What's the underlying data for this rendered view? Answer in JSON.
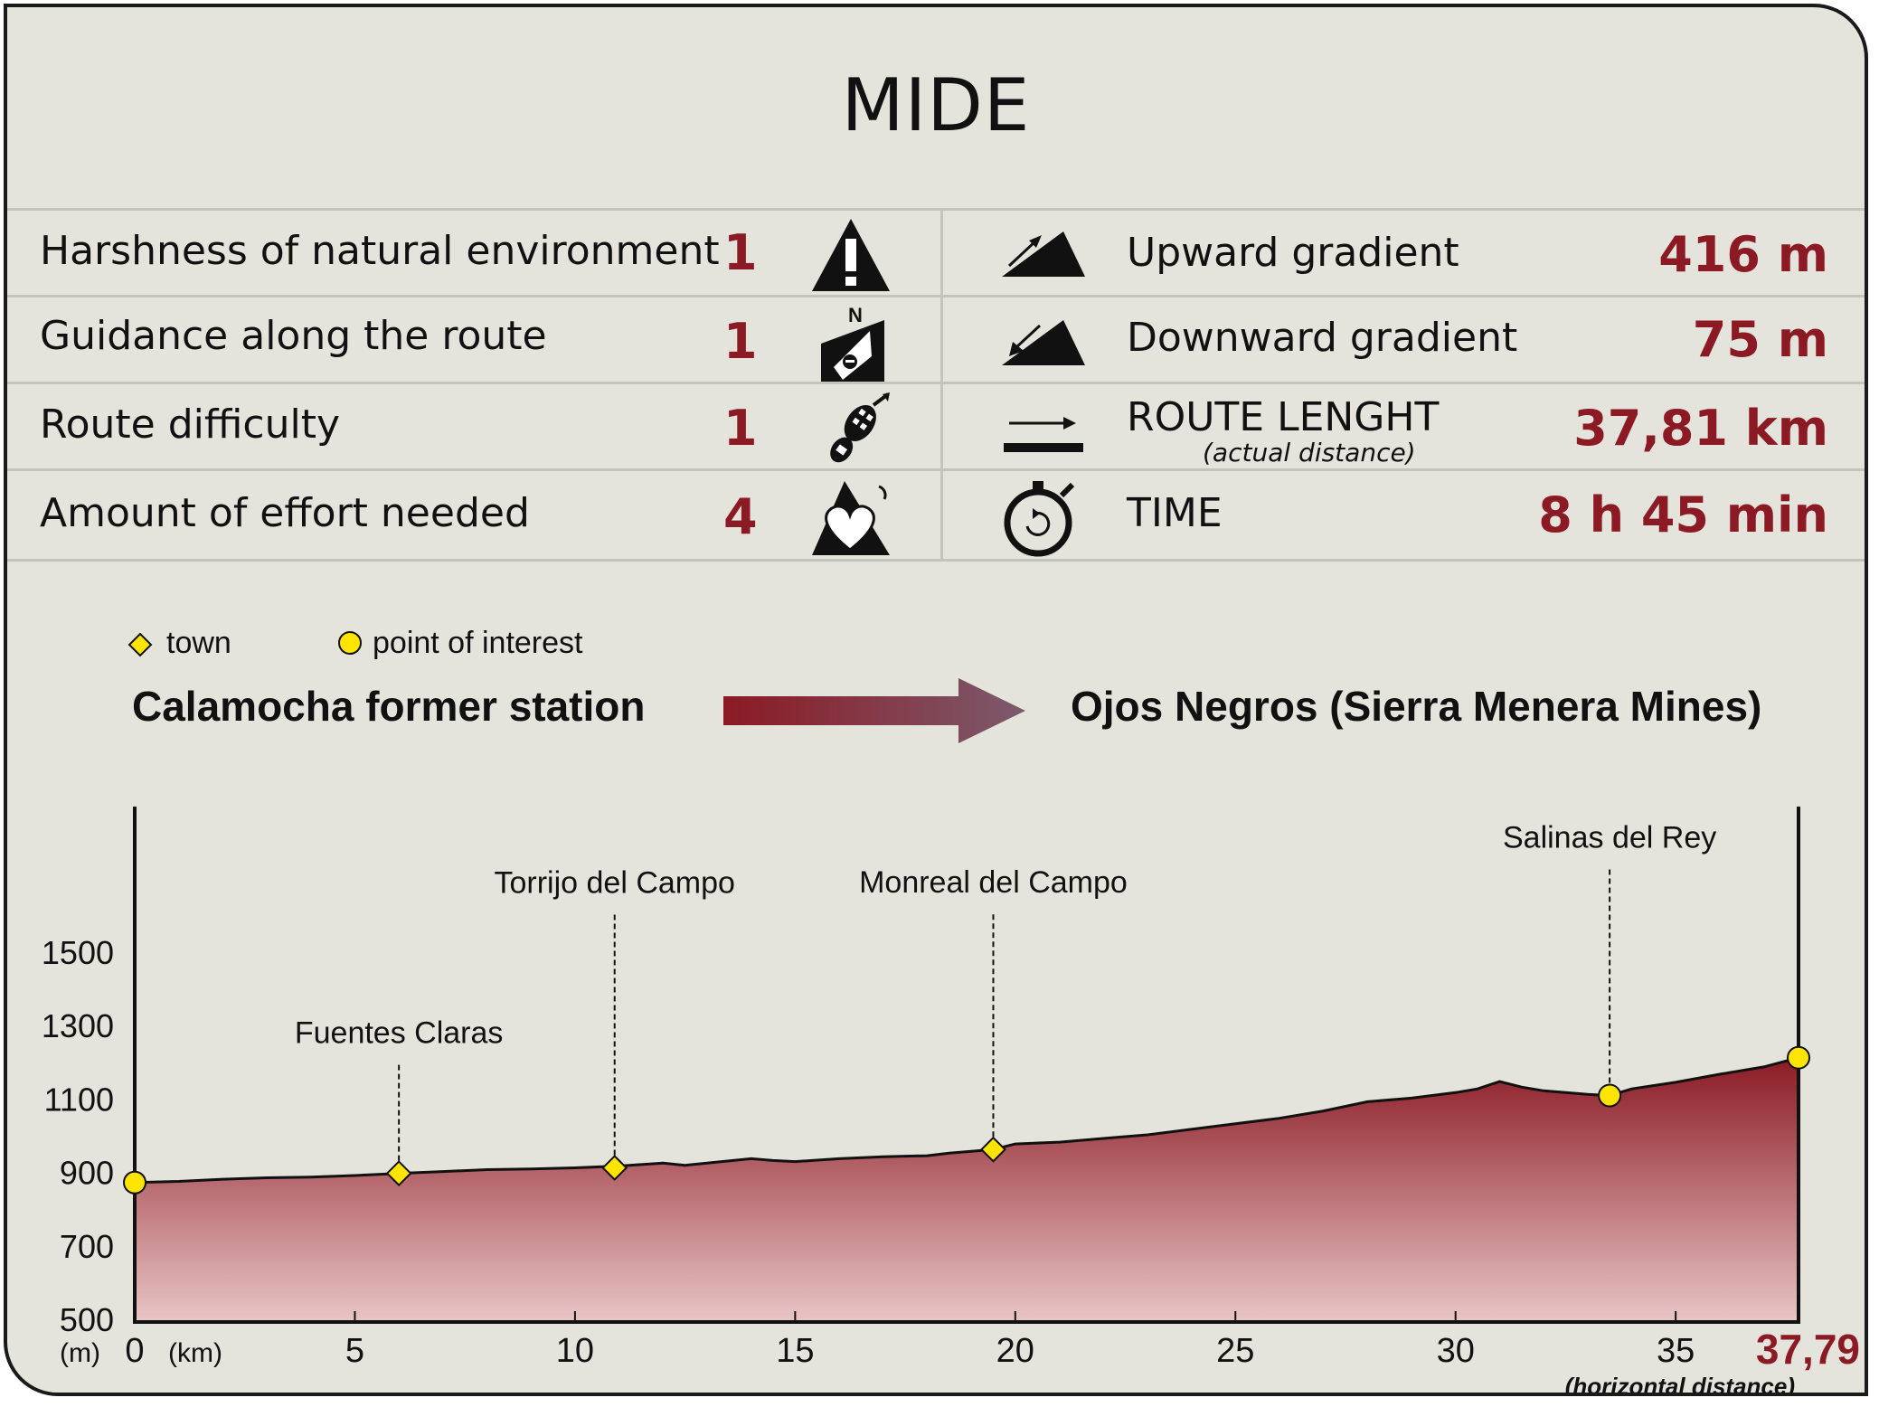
{
  "title": "MIDE",
  "mide": [
    {
      "label": "Harshness of natural environment",
      "value": "1",
      "icon": "warning-mountain-icon"
    },
    {
      "label": "Guidance along the route",
      "value": "1",
      "icon": "compass-signpost-icon"
    },
    {
      "label": "Route difficulty",
      "value": "1",
      "icon": "footprint-icon"
    },
    {
      "label": "Amount of effort needed",
      "value": "4",
      "icon": "heart-mountain-icon"
    }
  ],
  "stats": [
    {
      "label": "Upward gradient",
      "value": "416 m",
      "icon": "upward-gradient-icon"
    },
    {
      "label": "Downward gradient",
      "value": "75 m",
      "icon": "downward-gradient-icon"
    },
    {
      "label": "ROUTE LENGHT",
      "sublabel": "(actual distance)",
      "value": "37,81 km",
      "icon": "route-length-arrow-icon"
    },
    {
      "label": "TIME",
      "value": "8 h 45 min",
      "icon": "stopwatch-icon"
    }
  ],
  "legend": {
    "town": "town",
    "poi": "point of interest"
  },
  "route": {
    "from": "Calamocha former station",
    "to": "Ojos Negros (Sierra Menera Mines)"
  },
  "colors": {
    "accent": "#8b1a24",
    "background": "#e4e4dc",
    "marker": "#ffe400",
    "arrow_start": "#8b1a24",
    "arrow_end": "#7c5a6c"
  },
  "chart_data": {
    "type": "area",
    "x_unit": "(km)",
    "y_unit": "(m)",
    "xlim": [
      0,
      37.79
    ],
    "ylim": [
      500,
      1500
    ],
    "y_ticks": [
      500,
      700,
      900,
      1100,
      1300,
      1500
    ],
    "x_ticks": [
      0,
      5,
      10,
      15,
      20,
      25,
      30,
      35
    ],
    "x_end_label": "37,79",
    "x_end_note": "(horizontal distance)",
    "profile": {
      "x": [
        0,
        1,
        2,
        3,
        4,
        5,
        6,
        7,
        8,
        9,
        10,
        11,
        12,
        12.5,
        13,
        14,
        14.5,
        15,
        16,
        17,
        18,
        18.5,
        19,
        19.5,
        20,
        21,
        22,
        23,
        24,
        25,
        26,
        27,
        28,
        29,
        30,
        30.5,
        31,
        31.5,
        32,
        33,
        33.5,
        34,
        35,
        36,
        37,
        37.79
      ],
      "y": [
        875,
        878,
        884,
        888,
        890,
        894,
        900,
        905,
        910,
        912,
        915,
        920,
        928,
        922,
        928,
        940,
        935,
        932,
        940,
        945,
        948,
        955,
        960,
        965,
        980,
        985,
        995,
        1005,
        1020,
        1035,
        1050,
        1070,
        1095,
        1105,
        1120,
        1130,
        1150,
        1135,
        1125,
        1115,
        1112,
        1130,
        1148,
        1170,
        1190,
        1215
      ]
    },
    "places": [
      {
        "name": "",
        "type": "point of interest",
        "x": 0,
        "y": 875
      },
      {
        "name": "Fuentes Claras",
        "type": "town",
        "x": 6,
        "y": 900
      },
      {
        "name": "Torrijo del Campo",
        "type": "town",
        "x": 10.9,
        "y": 915
      },
      {
        "name": "Monreal del Campo",
        "type": "town",
        "x": 19.5,
        "y": 965
      },
      {
        "name": "Salinas del Rey",
        "type": "point of interest",
        "x": 33.5,
        "y": 1112
      },
      {
        "name": "",
        "type": "point of interest",
        "x": 37.79,
        "y": 1215
      }
    ]
  }
}
